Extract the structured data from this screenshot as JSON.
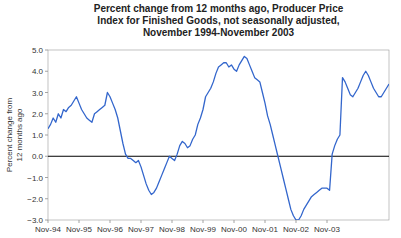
{
  "chart_data": {
    "type": "line",
    "title": "Percent change from 12 months ago, Producer Price\nIndex  for Finished Goods, not seasonally adjusted,\nNovember 1994-November 2003",
    "ylabel": "Percent change from\n12 months ago",
    "color": "#3366cc",
    "grid": false,
    "ylim": [
      -3.0,
      5.0
    ],
    "yticks": [
      {
        "value": -3.0,
        "label": "−3.0"
      },
      {
        "value": -2.0,
        "label": "−2.0"
      },
      {
        "value": -1.0,
        "label": "−1.0"
      },
      {
        "value": 0.0,
        "label": "0.0"
      },
      {
        "value": 1.0,
        "label": "1.0"
      },
      {
        "value": 2.0,
        "label": "2.0"
      },
      {
        "value": 3.0,
        "label": "3.0"
      },
      {
        "value": 4.0,
        "label": "4.0"
      },
      {
        "value": 5.0,
        "label": "5.0"
      }
    ],
    "categories": [
      "Nov-94",
      null,
      null,
      null,
      null,
      null,
      null,
      null,
      null,
      null,
      null,
      null,
      "Nov-95",
      null,
      null,
      null,
      null,
      null,
      null,
      null,
      null,
      null,
      null,
      null,
      "Nov-96",
      null,
      null,
      null,
      null,
      null,
      null,
      null,
      null,
      null,
      null,
      null,
      "Nov-97",
      null,
      null,
      null,
      null,
      null,
      null,
      null,
      null,
      null,
      null,
      null,
      "Nov-98",
      null,
      null,
      null,
      null,
      null,
      null,
      null,
      null,
      null,
      null,
      null,
      "Nov-99",
      null,
      null,
      null,
      null,
      null,
      null,
      null,
      null,
      null,
      null,
      null,
      "Nov-00",
      null,
      null,
      null,
      null,
      null,
      null,
      null,
      null,
      null,
      null,
      null,
      "Nov-01",
      null,
      null,
      null,
      null,
      null,
      null,
      null,
      null,
      null,
      null,
      null,
      "Nov-02",
      null,
      null,
      null,
      null,
      null,
      null,
      null,
      null,
      null,
      null,
      null,
      "Nov-03",
      null,
      null,
      null,
      null,
      null,
      null,
      null,
      null,
      null,
      null,
      null,
      null,
      null,
      null,
      null,
      null,
      null,
      null,
      null,
      null,
      null,
      null,
      null,
      null
    ],
    "values": [
      1.3,
      1.5,
      1.8,
      1.6,
      2.0,
      1.8,
      2.2,
      2.1,
      2.3,
      2.4,
      2.6,
      2.8,
      2.5,
      2.2,
      2.0,
      1.8,
      1.7,
      1.6,
      2.0,
      2.1,
      2.2,
      2.3,
      2.4,
      3.0,
      2.8,
      2.5,
      2.2,
      1.8,
      1.2,
      0.6,
      0.1,
      -0.1,
      -0.1,
      -0.2,
      -0.3,
      -0.2,
      -0.5,
      -0.9,
      -1.3,
      -1.6,
      -1.8,
      -1.7,
      -1.5,
      -1.2,
      -0.9,
      -0.6,
      -0.3,
      0.0,
      -0.1,
      -0.2,
      0.1,
      0.5,
      0.7,
      0.6,
      0.4,
      0.5,
      0.8,
      1.0,
      1.5,
      1.8,
      2.2,
      2.8,
      3.0,
      3.2,
      3.5,
      3.9,
      4.2,
      4.3,
      4.4,
      4.4,
      4.2,
      4.3,
      4.1,
      4.0,
      4.3,
      4.5,
      4.7,
      4.6,
      4.3,
      4.0,
      3.7,
      3.6,
      3.5,
      3.0,
      2.5,
      1.9,
      1.5,
      1.0,
      0.5,
      0.0,
      -0.5,
      -1.0,
      -1.5,
      -2.0,
      -2.5,
      -2.8,
      -3.0,
      -3.0,
      -2.8,
      -2.5,
      -2.3,
      -2.1,
      -1.9,
      -1.8,
      -1.7,
      -1.6,
      -1.5,
      -1.5,
      -1.5,
      -1.6,
      0.1,
      0.5,
      0.8,
      1.0,
      3.7,
      3.5,
      3.2,
      2.9,
      2.8,
      3.0,
      3.2,
      3.5,
      3.8,
      4.0,
      3.8,
      3.5,
      3.2,
      3.0,
      2.8,
      2.8,
      3.0,
      3.2,
      3.4
    ]
  }
}
